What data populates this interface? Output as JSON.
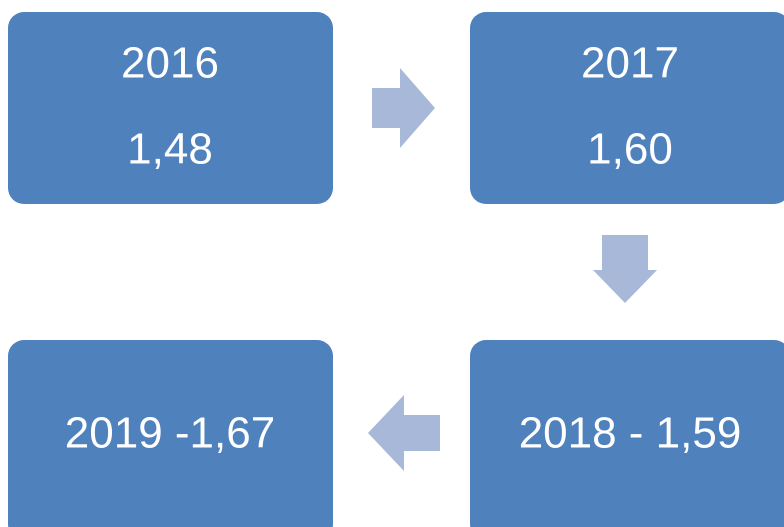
{
  "nodes": [
    {
      "lines": [
        "2016",
        "1,48"
      ]
    },
    {
      "lines": [
        "2017",
        "1,60"
      ]
    },
    {
      "lines": [
        "2018 - 1,59"
      ]
    },
    {
      "lines": [
        "2019 -1,67"
      ]
    }
  ]
}
